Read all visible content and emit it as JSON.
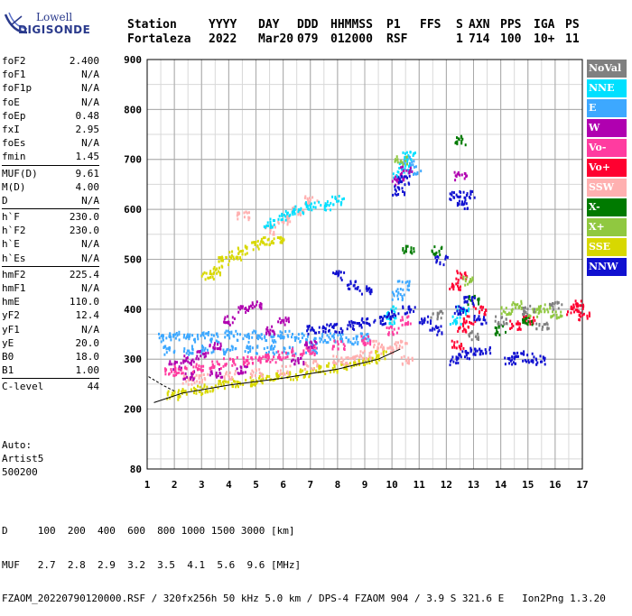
{
  "logo": {
    "line1": "Lowell",
    "line2": "DIGISONDE"
  },
  "header": {
    "labels": [
      "Station",
      "YYYY",
      "DAY",
      "DDD",
      "HHMMSS",
      "P1",
      "FFS",
      "S",
      "AXN",
      "PPS",
      "IGA",
      "PS"
    ],
    "values": [
      "Fortaleza",
      "2022",
      "Mar20",
      "079",
      "012000",
      "RSF",
      "",
      "1",
      "714",
      "100",
      "10+",
      "11"
    ]
  },
  "params": [
    [
      [
        "foF2",
        "2.400"
      ],
      [
        "foF1",
        "N/A"
      ],
      [
        "foF1p",
        "N/A"
      ],
      [
        "foE",
        "N/A"
      ],
      [
        "foEp",
        "0.48"
      ],
      [
        "fxI",
        "2.95"
      ],
      [
        "foEs",
        "N/A"
      ],
      [
        "fmin",
        "1.45"
      ]
    ],
    [
      [
        "MUF(D)",
        "9.61"
      ],
      [
        "M(D)",
        "4.00"
      ],
      [
        "D",
        "N/A"
      ]
    ],
    [
      [
        "h`F",
        "230.0"
      ],
      [
        "h`F2",
        "230.0"
      ],
      [
        "h`E",
        "N/A"
      ],
      [
        "h`Es",
        "N/A"
      ]
    ],
    [
      [
        "hmF2",
        "225.4"
      ],
      [
        "hmF1",
        "N/A"
      ],
      [
        "hmE",
        "110.0"
      ],
      [
        "yF2",
        "12.4"
      ],
      [
        "yF1",
        "N/A"
      ],
      [
        "yE",
        "20.0"
      ],
      [
        "B0",
        "18.0"
      ],
      [
        "B1",
        "1.00"
      ]
    ],
    [
      [
        "C-level",
        "44"
      ]
    ]
  ],
  "auto": {
    "line1": "Auto:",
    "line2": "Artist5",
    "line3": "500200"
  },
  "bottom": {
    "d_row": "D     100  200  400  600  800 1000 1500 3000 [km]",
    "muf_row": "MUF   2.7  2.8  2.9  3.2  3.5  4.1  5.6  9.6 [MHz]",
    "file_row": "FZAOM_20220790120000.RSF / 320fx256h 50 kHz 5.0 km / DPS-4 FZAOM 904 / 3.9 S 321.6 E   Ion2Png 1.3.20"
  },
  "legend": [
    {
      "label": "NoVal",
      "color": "#808080"
    },
    {
      "label": "NNE",
      "color": "#00e0ff"
    },
    {
      "label": "E",
      "color": "#3da8ff"
    },
    {
      "label": "W",
      "color": "#b000b0"
    },
    {
      "label": "Vo-",
      "color": "#ff3ca0"
    },
    {
      "label": "Vo+",
      "color": "#ff0030"
    },
    {
      "label": "SSW",
      "color": "#ffb0b0"
    },
    {
      "label": "X-",
      "color": "#007a00"
    },
    {
      "label": "X+",
      "color": "#90c840"
    },
    {
      "label": "SSE",
      "color": "#d8d800"
    },
    {
      "label": "NNW",
      "color": "#1010d0"
    }
  ],
  "chart_data": {
    "type": "scatter",
    "xlabel": "",
    "ylabel": "",
    "xlim": [
      1,
      17
    ],
    "ylim": [
      80,
      900
    ],
    "x_ticks": [
      1,
      2,
      3,
      4,
      5,
      6,
      7,
      8,
      9,
      10,
      11,
      12,
      13,
      14,
      15,
      16,
      17
    ],
    "y_ticks": [
      80,
      200,
      300,
      400,
      500,
      600,
      700,
      800,
      900
    ],
    "grid": true,
    "trace_clusters": [
      {
        "name": "SSE",
        "color": "#d8d800",
        "points": [
          [
            1.9,
            230
          ],
          [
            2.3,
            235
          ],
          [
            2.8,
            240
          ],
          [
            3.3,
            245
          ],
          [
            3.8,
            250
          ],
          [
            4.3,
            255
          ],
          [
            4.8,
            258
          ],
          [
            5.3,
            262
          ],
          [
            5.8,
            265
          ],
          [
            6.3,
            270
          ],
          [
            6.8,
            275
          ],
          [
            7.3,
            280
          ],
          [
            7.8,
            285
          ],
          [
            8.3,
            290
          ],
          [
            8.8,
            295
          ],
          [
            9.2,
            300
          ],
          [
            9.6,
            310
          ],
          [
            3.2,
            470
          ],
          [
            3.5,
            480
          ],
          [
            3.8,
            500
          ],
          [
            4.2,
            510
          ],
          [
            4.5,
            520
          ],
          [
            5.0,
            530
          ],
          [
            5.4,
            540
          ],
          [
            5.8,
            540
          ]
        ]
      },
      {
        "name": "SSW",
        "color": "#ffb0b0",
        "points": [
          [
            2.5,
            260
          ],
          [
            3.0,
            265
          ],
          [
            4.0,
            270
          ],
          [
            5.0,
            275
          ],
          [
            6.0,
            280
          ],
          [
            7.0,
            290
          ],
          [
            8.0,
            300
          ],
          [
            9.0,
            310
          ],
          [
            9.8,
            320
          ],
          [
            10.3,
            330
          ],
          [
            10.5,
            300
          ],
          [
            5.5,
            560
          ],
          [
            6.0,
            580
          ],
          [
            6.5,
            600
          ],
          [
            7.0,
            620
          ],
          [
            4.5,
            590
          ],
          [
            8.5,
            300
          ],
          [
            9.5,
            330
          ]
        ]
      },
      {
        "name": "E",
        "color": "#3da8ff",
        "points": [
          [
            1.6,
            345
          ],
          [
            2.0,
            350
          ],
          [
            2.5,
            345
          ],
          [
            3.0,
            350
          ],
          [
            3.5,
            345
          ],
          [
            4.0,
            350
          ],
          [
            4.5,
            345
          ],
          [
            5.0,
            350
          ],
          [
            5.5,
            345
          ],
          [
            6.0,
            350
          ],
          [
            6.5,
            345
          ],
          [
            7.0,
            340
          ],
          [
            7.5,
            345
          ],
          [
            8.0,
            345
          ],
          [
            8.5,
            340
          ],
          [
            9.0,
            345
          ],
          [
            1.8,
            320
          ],
          [
            2.5,
            320
          ],
          [
            3.2,
            320
          ],
          [
            4.0,
            320
          ],
          [
            4.8,
            320
          ],
          [
            5.5,
            320
          ],
          [
            6.2,
            320
          ],
          [
            7.0,
            320
          ],
          [
            10.2,
            430
          ],
          [
            10.4,
            450
          ],
          [
            10.6,
            700
          ],
          [
            10.8,
            680
          ]
        ]
      },
      {
        "name": "NNE",
        "color": "#00e0ff",
        "points": [
          [
            5.5,
            575
          ],
          [
            6.0,
            590
          ],
          [
            6.5,
            600
          ],
          [
            7.0,
            610
          ],
          [
            7.5,
            610
          ],
          [
            8.0,
            620
          ],
          [
            10.2,
            670
          ],
          [
            10.4,
            690
          ],
          [
            10.6,
            710
          ],
          [
            12.3,
            380
          ],
          [
            12.6,
            400
          ],
          [
            10.0,
            400
          ],
          [
            9.9,
            380
          ]
        ]
      },
      {
        "name": "W",
        "color": "#b000b0",
        "points": [
          [
            2.0,
            290
          ],
          [
            2.5,
            300
          ],
          [
            3.0,
            310
          ],
          [
            3.5,
            330
          ],
          [
            4.0,
            380
          ],
          [
            4.5,
            400
          ],
          [
            5.0,
            410
          ],
          [
            5.5,
            360
          ],
          [
            6.0,
            380
          ],
          [
            2.5,
            270
          ],
          [
            3.5,
            275
          ],
          [
            4.5,
            280
          ],
          [
            6.5,
            300
          ],
          [
            7.0,
            330
          ],
          [
            10.2,
            660
          ],
          [
            10.5,
            680
          ],
          [
            12.5,
            670
          ]
        ]
      },
      {
        "name": "Vo-",
        "color": "#ff3ca0",
        "points": [
          [
            1.8,
            275
          ],
          [
            2.2,
            280
          ],
          [
            2.8,
            285
          ],
          [
            3.5,
            290
          ],
          [
            4.0,
            295
          ],
          [
            4.5,
            300
          ],
          [
            5.0,
            300
          ],
          [
            5.5,
            305
          ],
          [
            6.0,
            310
          ],
          [
            6.5,
            315
          ],
          [
            7.0,
            320
          ],
          [
            8.0,
            330
          ],
          [
            9.0,
            340
          ],
          [
            10.0,
            360
          ],
          [
            10.5,
            380
          ]
        ]
      },
      {
        "name": "Vo+",
        "color": "#ff0030",
        "points": [
          [
            12.4,
            330
          ],
          [
            12.6,
            360
          ],
          [
            12.8,
            380
          ],
          [
            13.2,
            400
          ],
          [
            14.5,
            370
          ],
          [
            15.0,
            380
          ],
          [
            16.6,
            400
          ],
          [
            16.8,
            410
          ],
          [
            17.0,
            390
          ],
          [
            12.3,
            450
          ],
          [
            12.5,
            470
          ]
        ]
      },
      {
        "name": "X-",
        "color": "#007a00",
        "points": [
          [
            10.6,
            520
          ],
          [
            11.6,
            520
          ],
          [
            12.5,
            740
          ],
          [
            13.0,
            420
          ],
          [
            14.0,
            360
          ],
          [
            15.0,
            380
          ]
        ]
      },
      {
        "name": "X+",
        "color": "#90c840",
        "points": [
          [
            14.2,
            400
          ],
          [
            14.6,
            410
          ],
          [
            15.2,
            395
          ],
          [
            15.6,
            405
          ],
          [
            16.0,
            390
          ],
          [
            10.3,
            700
          ],
          [
            12.8,
            460
          ]
        ]
      },
      {
        "name": "NNW",
        "color": "#1010d0",
        "points": [
          [
            7.0,
            360
          ],
          [
            7.5,
            365
          ],
          [
            8.0,
            365
          ],
          [
            8.5,
            370
          ],
          [
            9.0,
            375
          ],
          [
            9.5,
            380
          ],
          [
            10.0,
            390
          ],
          [
            10.6,
            400
          ],
          [
            11.2,
            380
          ],
          [
            11.6,
            360
          ],
          [
            12.3,
            300
          ],
          [
            12.6,
            310
          ],
          [
            13.0,
            320
          ],
          [
            13.4,
            320
          ],
          [
            12.5,
            400
          ],
          [
            12.8,
            420
          ],
          [
            13.2,
            380
          ],
          [
            14.3,
            300
          ],
          [
            14.6,
            310
          ],
          [
            15.0,
            305
          ],
          [
            15.4,
            300
          ],
          [
            8.0,
            470
          ],
          [
            8.5,
            450
          ],
          [
            9.0,
            440
          ],
          [
            12.3,
            630
          ],
          [
            12.6,
            610
          ],
          [
            12.8,
            630
          ],
          [
            10.2,
            640
          ],
          [
            10.4,
            660
          ],
          [
            11.8,
            500
          ]
        ]
      },
      {
        "name": "NoVal",
        "color": "#808080",
        "points": [
          [
            14.0,
            380
          ],
          [
            15.0,
            400
          ],
          [
            15.5,
            370
          ],
          [
            16.0,
            410
          ],
          [
            13.0,
            350
          ],
          [
            11.6,
            390
          ]
        ]
      }
    ],
    "model_lines": [
      {
        "points": [
          [
            1.25,
            213
          ],
          [
            2.3,
            232
          ],
          [
            4,
            248
          ],
          [
            6,
            262
          ],
          [
            8,
            280
          ],
          [
            9.5,
            300
          ],
          [
            10.3,
            320
          ]
        ]
      },
      {
        "points": [
          [
            1.05,
            265
          ],
          [
            1.6,
            247
          ],
          [
            2.0,
            236
          ]
        ]
      }
    ]
  }
}
